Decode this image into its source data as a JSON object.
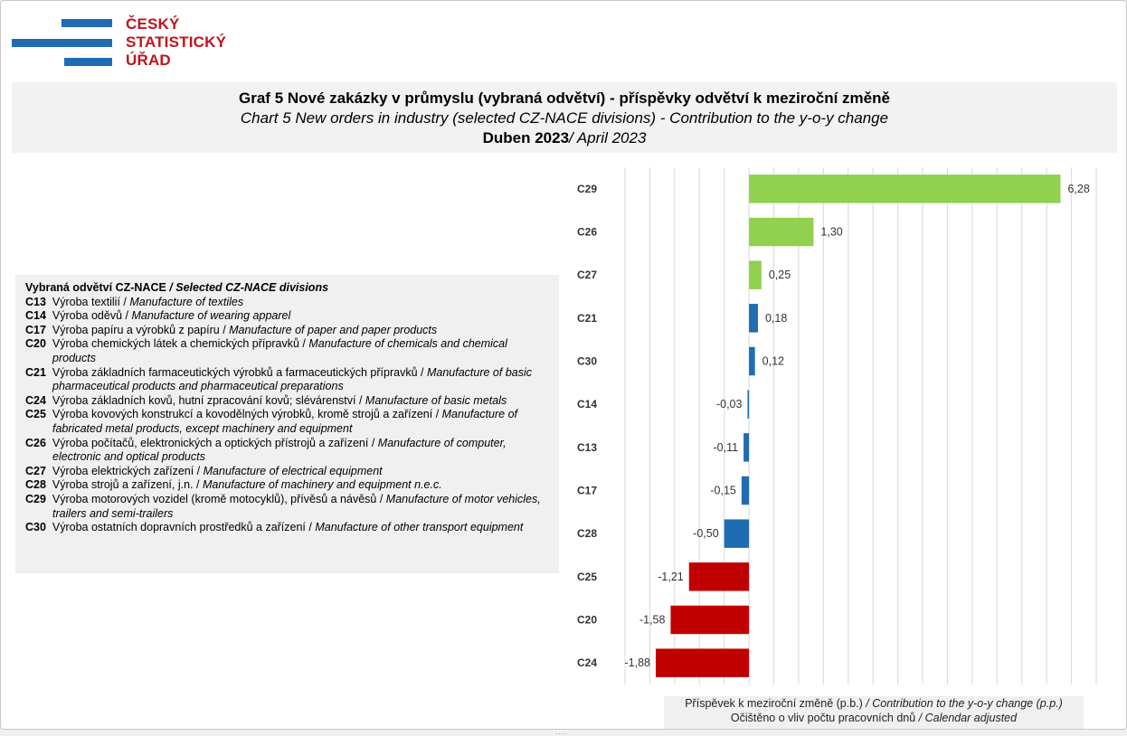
{
  "logo": {
    "lines": [
      "ČESKÝ",
      "STATISTICKÝ",
      "ÚŘAD"
    ],
    "bar_color": "#1f6cb3",
    "text_color": "#c0141c"
  },
  "title": {
    "cz": "Graf 5 Nové zakázky v průmyslu (vybraná odvětví) - příspěvky odvětví k meziroční změně",
    "en": "Chart 5 New orders in industry (selected CZ-NACE divisions) - Contribution to the y-o-y change",
    "period_cz": "Duben 2023",
    "period_en": "/ April 2023"
  },
  "legend": {
    "heading_cz": "Vybraná odvětví CZ-NACE",
    "heading_en": " / Selected CZ-NACE divisions",
    "items": [
      {
        "code": "C13",
        "cz": "Výroba textilií",
        "en": "Manufacture of textiles"
      },
      {
        "code": "C14",
        "cz": "Výroba oděvů",
        "en": "Manufacture of wearing apparel"
      },
      {
        "code": "C17",
        "cz": "Výroba papíru a výrobků z papíru",
        "en": "Manufacture of paper and paper products"
      },
      {
        "code": "C20",
        "cz": "Výroba chemických látek a chemických přípravků",
        "en": "Manufacture of chemicals and chemical products"
      },
      {
        "code": "C21",
        "cz": "Výroba základních farmaceutických výrobků a farmaceutických přípravků",
        "en": "Manufacture of basic pharmaceutical products and pharmaceutical preparations"
      },
      {
        "code": "C24",
        "cz": "Výroba základních kovů, hutní zpracování kovů; slévárenství",
        "en": "Manufacture of basic metals"
      },
      {
        "code": "C25",
        "cz": "Výroba kovových konstrukcí a kovodělných výrobků, kromě strojů a zařízení",
        "en": "Manufacture of fabricated metal products, except machinery and equipment"
      },
      {
        "code": "C26",
        "cz": "Výroba počítačů, elektronických a optických přístrojů a zařízení",
        "en": "Manufacture of computer, electronic and optical products"
      },
      {
        "code": "C27",
        "cz": "Výroba elektrických zařízení",
        "en": "Manufacture of electrical equipment"
      },
      {
        "code": "C28",
        "cz": "Výroba strojů a zařízení, j.n.",
        "en": "Manufacture of machinery and equipment n.e.c."
      },
      {
        "code": "C29",
        "cz": "Výroba motorových vozidel (kromě motocyklů), přívěsů a návěsů",
        "en": "Manufacture of motor vehicles, trailers and semi-trailers"
      },
      {
        "code": "C30",
        "cz": "Výroba ostatních dopravních prostředků a zařízení",
        "en": "Manufacture of other transport equipment"
      }
    ]
  },
  "axis_note": {
    "line1_cz": "Příspěvek k meziroční změně (p.b.)",
    "line1_en": " / Contribution to the y-o-y change (p.p.)",
    "line2_cz": "Očištěno o vliv počtu pracovních dnů",
    "line2_en": " / Calendar adjusted"
  },
  "chart_data": {
    "type": "bar",
    "orientation": "horizontal",
    "categories": [
      "C29",
      "C26",
      "C27",
      "C21",
      "C30",
      "C14",
      "C13",
      "C17",
      "C28",
      "C25",
      "C20",
      "C24"
    ],
    "values": [
      6.28,
      1.3,
      0.25,
      0.18,
      0.12,
      -0.03,
      -0.11,
      -0.15,
      -0.5,
      -1.21,
      -1.58,
      -1.88
    ],
    "value_labels": [
      "6,28",
      "1,30",
      "0,25",
      "0,18",
      "0,12",
      "-0,03",
      "-0,11",
      "-0,15",
      "-0,50",
      "-1,21",
      "-1,58",
      "-1,88"
    ],
    "colors": [
      "#92d050",
      "#92d050",
      "#92d050",
      "#1f6cb3",
      "#1f6cb3",
      "#1f6cb3",
      "#1f6cb3",
      "#1f6cb3",
      "#1f6cb3",
      "#c00000",
      "#c00000",
      "#c00000"
    ],
    "xlim": [
      -2.5,
      7.0
    ],
    "grid_step": 0.5,
    "grid": true
  }
}
